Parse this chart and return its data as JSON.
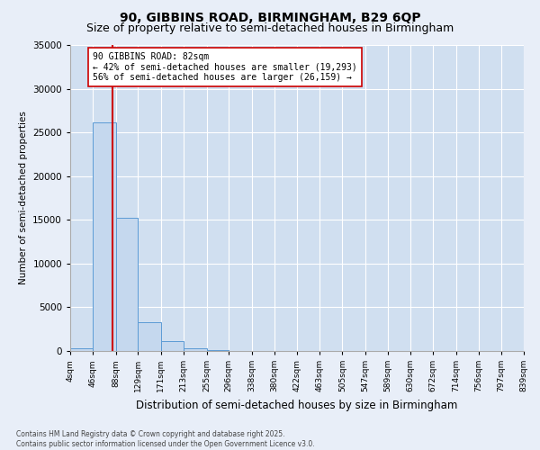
{
  "title": "90, GIBBINS ROAD, BIRMINGHAM, B29 6QP",
  "subtitle": "Size of property relative to semi-detached houses in Birmingham",
  "xlabel": "Distribution of semi-detached houses by size in Birmingham",
  "ylabel": "Number of semi-detached properties",
  "bin_labels": [
    "4sqm",
    "46sqm",
    "88sqm",
    "129sqm",
    "171sqm",
    "213sqm",
    "255sqm",
    "296sqm",
    "338sqm",
    "380sqm",
    "422sqm",
    "463sqm",
    "505sqm",
    "547sqm",
    "589sqm",
    "630sqm",
    "672sqm",
    "714sqm",
    "756sqm",
    "797sqm",
    "839sqm"
  ],
  "bin_edges": [
    4,
    46,
    88,
    129,
    171,
    213,
    255,
    296,
    338,
    380,
    422,
    463,
    505,
    547,
    589,
    630,
    672,
    714,
    756,
    797,
    839
  ],
  "bar_heights": [
    350,
    26100,
    15200,
    3300,
    1100,
    350,
    100,
    50,
    30,
    20,
    15,
    10,
    8,
    5,
    4,
    3,
    2,
    2,
    1,
    1
  ],
  "bar_color": "#c5d8ee",
  "bar_edgecolor": "#5b9bd5",
  "property_size": 82,
  "red_line_color": "#cc0000",
  "annotation_text": "90 GIBBINS ROAD: 82sqm\n← 42% of semi-detached houses are smaller (19,293)\n56% of semi-detached houses are larger (26,159) →",
  "annotation_box_color": "white",
  "annotation_box_edgecolor": "#cc0000",
  "ylim": [
    0,
    35000
  ],
  "yticks": [
    0,
    5000,
    10000,
    15000,
    20000,
    25000,
    30000,
    35000
  ],
  "background_color": "#e8eef8",
  "footer_line1": "Contains HM Land Registry data © Crown copyright and database right 2025.",
  "footer_line2": "Contains public sector information licensed under the Open Government Licence v3.0.",
  "title_fontsize": 10,
  "subtitle_fontsize": 9,
  "grid_color": "#ffffff",
  "axes_bg_color": "#d0dff0"
}
